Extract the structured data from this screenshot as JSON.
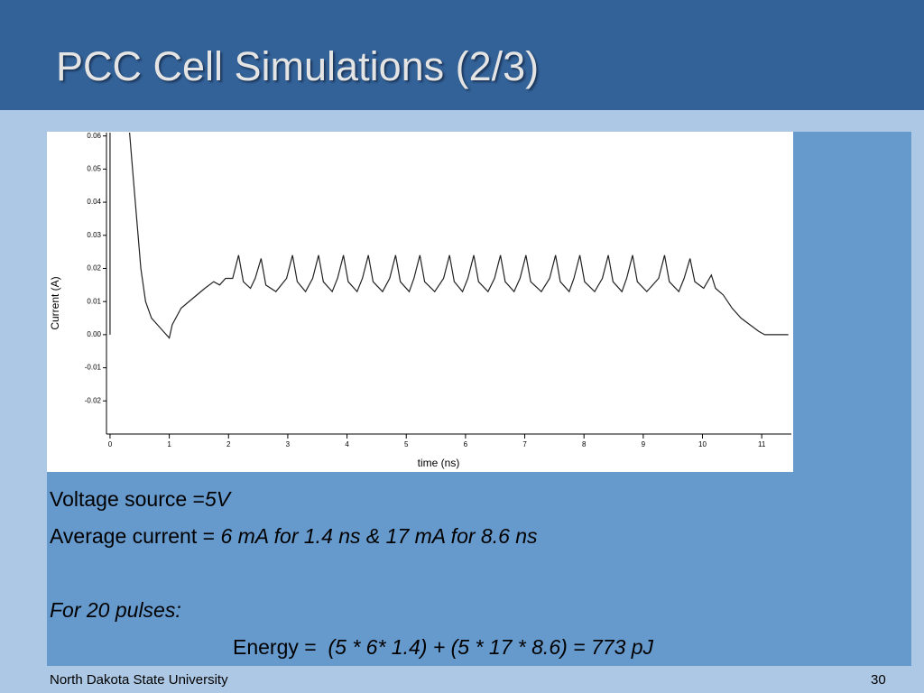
{
  "slide": {
    "title": "PCC Cell Simulations (2/3)",
    "voltage": {
      "label": "Voltage source =",
      "value": "5V"
    },
    "current": {
      "label": "Average current = ",
      "value": "6 mA for 1.4 ns & 17 mA for 8.6 ns"
    },
    "pulses": "For 20 pulses:",
    "energy": {
      "label": "Energy =  ",
      "value": "(5 * 6* 1.4) + (5 * 17 * 8.6) = 773 pJ"
    },
    "footer": "North Dakota State University",
    "page": "30"
  },
  "chart_data": {
    "type": "line",
    "x_label": "time (ns)",
    "y_label": "Current (A)",
    "color": "#222222",
    "xlim": [
      -0.06,
      11.5
    ],
    "ylim": [
      -0.03,
      0.061
    ],
    "xticks": [
      0,
      1,
      2,
      3,
      4,
      5,
      6,
      7,
      8,
      9,
      10,
      11
    ],
    "yticks": [
      0.06,
      0.05,
      0.04,
      0.03,
      0.02,
      0.01,
      {
        "value": 0,
        "label": "0.00"
      },
      -0.01,
      -0.02
    ],
    "x": [
      0,
      0,
      0.05,
      0.33,
      0.38,
      0.45,
      0.52,
      0.6,
      0.7,
      0.8,
      0.9,
      1.0,
      1.05,
      1.2,
      1.4,
      1.6,
      1.75,
      1.85,
      1.95,
      2.07,
      2.17,
      2.25,
      2.37,
      2.45,
      2.55,
      2.63,
      2.8,
      2.98,
      3.08,
      3.16,
      3.3,
      3.42,
      3.52,
      3.6,
      3.75,
      3.84,
      3.94,
      4.02,
      4.17,
      4.26,
      4.36,
      4.44,
      4.6,
      4.72,
      4.82,
      4.9,
      5.05,
      5.13,
      5.23,
      5.31,
      5.48,
      5.63,
      5.73,
      5.81,
      5.95,
      6.04,
      6.14,
      6.22,
      6.38,
      6.49,
      6.59,
      6.67,
      6.82,
      6.92,
      7.02,
      7.1,
      7.28,
      7.42,
      7.52,
      7.6,
      7.75,
      7.83,
      7.93,
      8.01,
      8.18,
      8.31,
      8.41,
      8.49,
      8.64,
      8.72,
      8.82,
      8.9,
      9.06,
      9.26,
      9.36,
      9.44,
      9.6,
      9.69,
      9.79,
      9.87,
      10.02,
      10.15,
      10.22,
      10.35,
      10.5,
      10.65,
      10.8,
      10.95,
      11.05,
      11.45
    ],
    "values": [
      0,
      0.061,
      null,
      0.061,
      0.05,
      0.035,
      0.02,
      0.01,
      0.005,
      0.003,
      0.001,
      -0.001,
      0.003,
      0.008,
      0.011,
      0.014,
      0.016,
      0.015,
      0.017,
      0.017,
      0.024,
      0.016,
      0.014,
      0.017,
      0.023,
      0.015,
      0.013,
      0.017,
      0.024,
      0.016,
      0.013,
      0.017,
      0.024,
      0.016,
      0.013,
      0.017,
      0.024,
      0.016,
      0.013,
      0.017,
      0.024,
      0.016,
      0.013,
      0.017,
      0.024,
      0.016,
      0.013,
      0.017,
      0.024,
      0.016,
      0.013,
      0.017,
      0.024,
      0.016,
      0.013,
      0.017,
      0.024,
      0.016,
      0.013,
      0.017,
      0.024,
      0.016,
      0.013,
      0.017,
      0.024,
      0.016,
      0.013,
      0.017,
      0.024,
      0.016,
      0.013,
      0.017,
      0.024,
      0.016,
      0.013,
      0.017,
      0.024,
      0.016,
      0.013,
      0.017,
      0.024,
      0.016,
      0.013,
      0.017,
      0.024,
      0.016,
      0.013,
      0.017,
      0.023,
      0.016,
      0.014,
      0.018,
      0.014,
      0.012,
      0.008,
      0.005,
      0.003,
      0.001,
      0,
      0
    ]
  }
}
